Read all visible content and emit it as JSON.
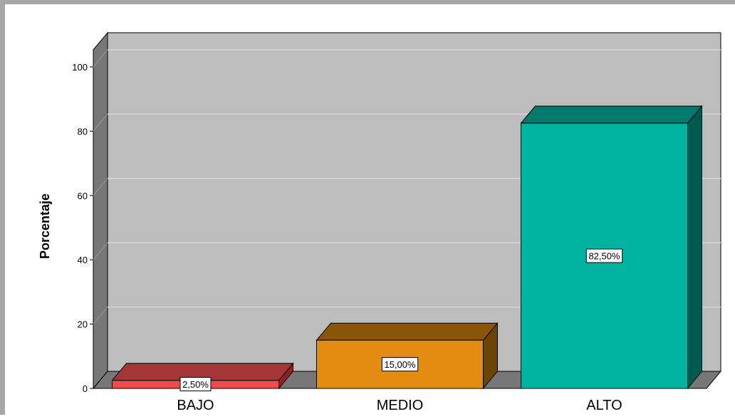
{
  "chart_data": {
    "type": "bar",
    "title": "",
    "xlabel": "",
    "ylabel": "Porcentaje",
    "ylim": [
      0,
      100
    ],
    "yticks": [
      0,
      20,
      40,
      60,
      80,
      100
    ],
    "grid": true,
    "style": "3d",
    "categories": [
      "BAJO",
      "MEDIO",
      "ALTO"
    ],
    "values": [
      2.5,
      15.0,
      82.5
    ],
    "data_labels": [
      "2,50%",
      "15,00%",
      "82,50%"
    ],
    "colors": [
      "#f04a4a",
      "#e48c12",
      "#00b2a0"
    ],
    "top_colors": [
      "#a63535",
      "#8a5606",
      "#007a6c"
    ],
    "side_colors": [
      "#8c2323",
      "#6b4303",
      "#00594f"
    ],
    "plot_background": "#bdbdbd",
    "wall_side_color": "#777777",
    "floor_color": "#777777"
  }
}
